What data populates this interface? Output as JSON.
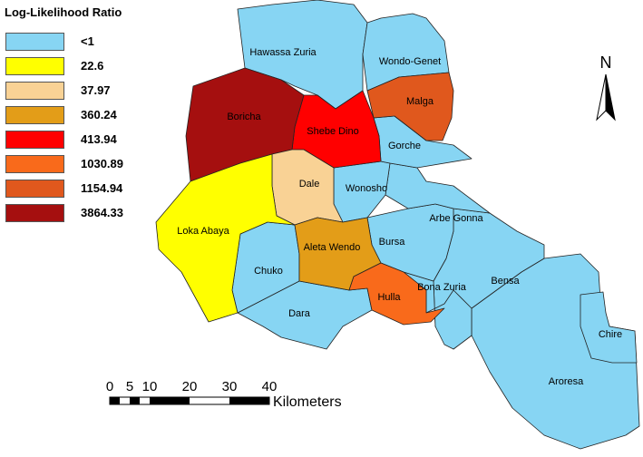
{
  "legend": {
    "title": "Log-Likelihood Ratio",
    "classes": [
      {
        "label": "<1",
        "color": "#87d5f3"
      },
      {
        "label": "22.6",
        "color": "#ffff00"
      },
      {
        "label": "37.97",
        "color": "#f9d295"
      },
      {
        "label": "360.24",
        "color": "#e39d18"
      },
      {
        "label": "413.94",
        "color": "#ff0000"
      },
      {
        "label": "1030.89",
        "color": "#f96a1b"
      },
      {
        "label": "1154.94",
        "color": "#e0581d"
      },
      {
        "label": "3864.33",
        "color": "#a50f0f"
      }
    ]
  },
  "regions": {
    "hawassa_zuria": {
      "name": "Hawassa Zuria",
      "color": "#87d5f3"
    },
    "wondo_genet": {
      "name": "Wondo-Genet",
      "color": "#87d5f3"
    },
    "malga": {
      "name": "Malga",
      "color": "#e0581d"
    },
    "boricha": {
      "name": "Boricha",
      "color": "#a50f0f"
    },
    "shebe_dino": {
      "name": "Shebe Dino",
      "color": "#ff0000"
    },
    "gorche": {
      "name": "Gorche",
      "color": "#87d5f3"
    },
    "dale": {
      "name": "Dale",
      "color": "#f9d295"
    },
    "wonosho": {
      "name": "Wonosho",
      "color": "#87d5f3"
    },
    "loka_abaya": {
      "name": "Loka Abaya",
      "color": "#ffff00"
    },
    "arbe_gonna": {
      "name": "Arbe Gonna",
      "color": "#87d5f3"
    },
    "aleta_wendo": {
      "name": "Aleta Wendo",
      "color": "#e39d18"
    },
    "bursa": {
      "name": "Bursa",
      "color": "#87d5f3"
    },
    "chuko": {
      "name": "Chuko",
      "color": "#87d5f3"
    },
    "bensa": {
      "name": "Bensa",
      "color": "#87d5f3"
    },
    "bona_zuria": {
      "name": "Bona Zuria",
      "color": "#87d5f3"
    },
    "hulla": {
      "name": "Hulla",
      "color": "#f96a1b"
    },
    "dara": {
      "name": "Dara",
      "color": "#87d5f3"
    },
    "chire": {
      "name": "Chire",
      "color": "#87d5f3"
    },
    "aroresa": {
      "name": "Aroresa",
      "color": "#87d5f3"
    }
  },
  "scale_bar": {
    "ticks": [
      "0",
      "5",
      "10",
      "20",
      "30",
      "40"
    ],
    "unit": "Kilometers"
  },
  "north_arrow": {
    "letter": "N",
    "icon": "north-arrow-icon"
  }
}
